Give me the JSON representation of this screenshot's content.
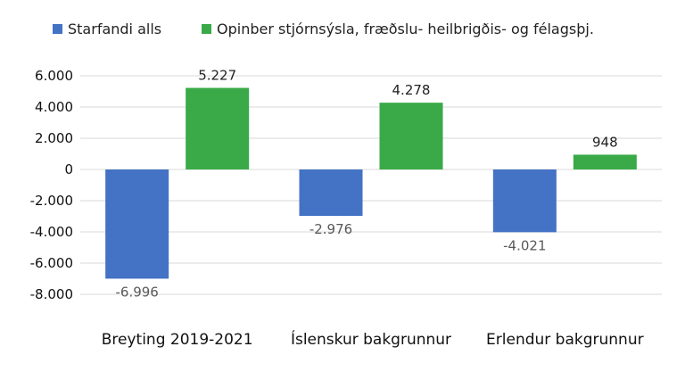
{
  "chart_data": {
    "type": "bar",
    "categories": [
      "Breyting 2019-2021",
      "Íslenskur bakgrunnur",
      "Erlendur bakgrunnur"
    ],
    "series": [
      {
        "name": "Starfandi alls",
        "color": "#4472c4",
        "values": [
          -6996,
          -2976,
          -4021
        ],
        "labels": [
          "-6.996",
          "-2.976",
          "-4.021"
        ]
      },
      {
        "name": "Opinber stjórnsýsla, fræðslu- heilbrigðis- og félagsþj.",
        "color": "#3aaa48",
        "values": [
          5227,
          4278,
          948
        ],
        "labels": [
          "5.227",
          "4.278",
          "948"
        ]
      }
    ],
    "ylim": [
      -8000,
      6000
    ],
    "yticks": [
      6000,
      4000,
      2000,
      0,
      -2000,
      -4000,
      -6000,
      -8000
    ],
    "ytick_labels": [
      "6.000",
      "4.000",
      "2.000",
      "0",
      "-2.000",
      "-4.000",
      "-6.000",
      "-8.000"
    ],
    "title": "",
    "xlabel": "",
    "ylabel": "",
    "grid": true,
    "legend_position": "top"
  }
}
